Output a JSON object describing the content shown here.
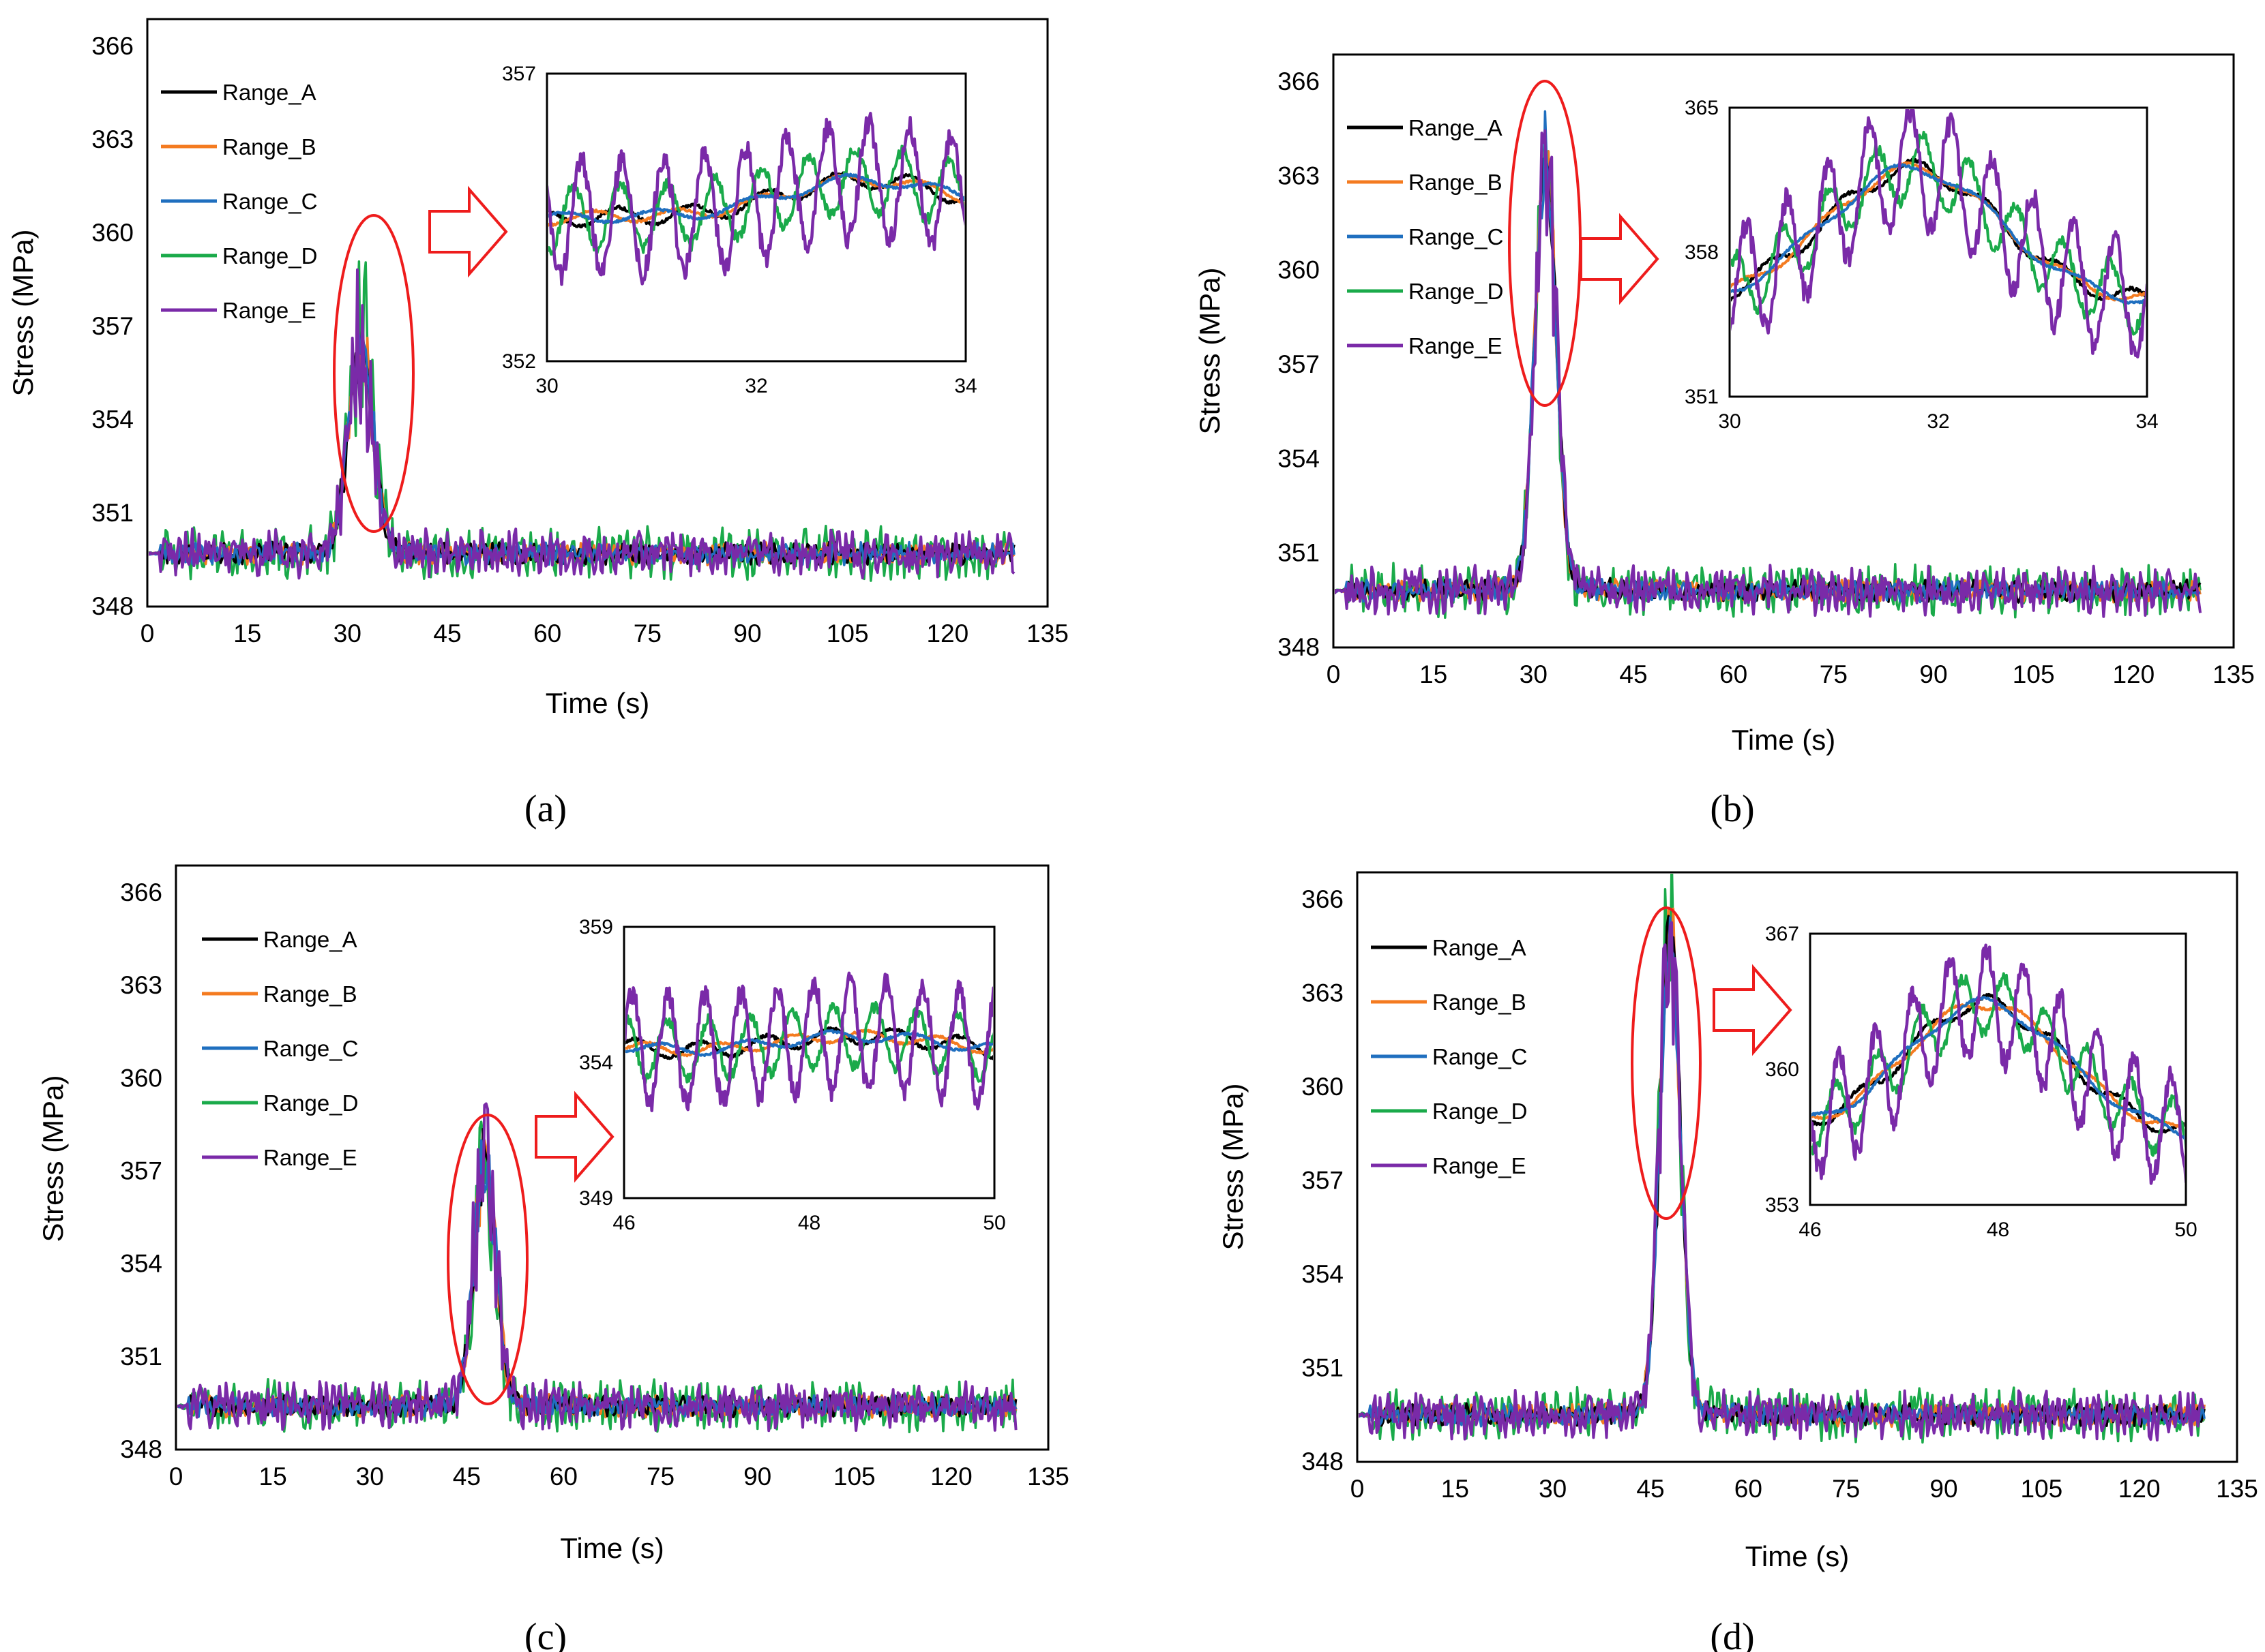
{
  "figure": {
    "colors": {
      "Range_A": "#000000",
      "Range_B": "#f47b20",
      "Range_C": "#1f6fbf",
      "Range_D": "#1aaa4a",
      "Range_E": "#7a2aa8",
      "highlight": "#ee1c1c"
    }
  },
  "chart_data": [
    {
      "type": "line",
      "panel_label": "(a)",
      "xlabel": "Time (s)",
      "ylabel": "Stress (MPa)",
      "xlim": [
        0,
        135
      ],
      "ylim": [
        348,
        366
      ],
      "xticks": [
        "0",
        "15",
        "30",
        "45",
        "60",
        "75",
        "90",
        "105",
        "120",
        "135"
      ],
      "yticks": [
        "348",
        "351",
        "354",
        "357",
        "360",
        "363",
        "366"
      ],
      "legend": [
        "Range_A",
        "Range_B",
        "Range_C",
        "Range_D",
        "Range_E"
      ],
      "legend_position": "top-left",
      "series_profile": {
        "base": 349.7,
        "peak_time": 32,
        "peak_value": 356.2,
        "peak_width": 2.6,
        "end_time": 130
      },
      "inset": {
        "xlim": [
          30,
          34
        ],
        "ylim": [
          352,
          357
        ],
        "xticks": [
          "30",
          "32",
          "34"
        ],
        "yticks": [
          "352",
          "357"
        ],
        "profile": {
          "center": 354.4,
          "envelope_peak": 32.9,
          "envelope_gain": 0.8
        }
      }
    },
    {
      "type": "line",
      "panel_label": "(b)",
      "xlabel": "Time (s)",
      "ylabel": "Stress (MPa)",
      "xlim": [
        0,
        135
      ],
      "ylim": [
        348,
        366
      ],
      "xticks": [
        "0",
        "15",
        "30",
        "45",
        "60",
        "75",
        "90",
        "105",
        "120",
        "135"
      ],
      "yticks": [
        "348",
        "351",
        "354",
        "357",
        "360",
        "363",
        "366"
      ],
      "legend": [
        "Range_A",
        "Range_B",
        "Range_C",
        "Range_D",
        "Range_E"
      ],
      "legend_position": "top-left",
      "series_profile": {
        "base": 349.8,
        "peak_time": 31.8,
        "peak_value": 363.5,
        "peak_width": 2.2,
        "end_time": 130
      },
      "inset": {
        "xlim": [
          30,
          34
        ],
        "ylim": [
          351,
          365
        ],
        "xticks": [
          "30",
          "32",
          "34"
        ],
        "yticks": [
          "351",
          "358",
          "365"
        ],
        "profile": {
          "center": 355.2,
          "envelope_peak": 31.8,
          "envelope_gain": 7.0
        }
      }
    },
    {
      "type": "line",
      "panel_label": "(c)",
      "xlabel": "Time (s)",
      "ylabel": "Stress (MPa)",
      "xlim": [
        0,
        135
      ],
      "ylim": [
        348,
        366
      ],
      "xticks": [
        "0",
        "15",
        "30",
        "45",
        "60",
        "75",
        "90",
        "105",
        "120",
        "135"
      ],
      "yticks": [
        "348",
        "351",
        "354",
        "357",
        "360",
        "363",
        "366"
      ],
      "legend": [
        "Range_A",
        "Range_B",
        "Range_C",
        "Range_D",
        "Range_E"
      ],
      "legend_position": "top-left",
      "series_profile": {
        "base": 349.4,
        "peak_time": 47.8,
        "peak_value": 357.2,
        "peak_width": 2.4,
        "end_time": 130
      },
      "inset": {
        "xlim": [
          46,
          50
        ],
        "ylim": [
          349,
          359
        ],
        "xticks": [
          "46",
          "48",
          "50"
        ],
        "yticks": [
          "349",
          "354",
          "359"
        ],
        "profile": {
          "center": 354.5,
          "envelope_peak": 48.0,
          "envelope_gain": 0.4
        }
      }
    },
    {
      "type": "line",
      "panel_label": "(d)",
      "xlabel": "Time (s)",
      "ylabel": "Stress (MPa)",
      "xlim": [
        0,
        135
      ],
      "ylim": [
        348,
        366
      ],
      "xticks": [
        "0",
        "15",
        "30",
        "45",
        "60",
        "75",
        "90",
        "105",
        "120",
        "135"
      ],
      "yticks": [
        "348",
        "351",
        "354",
        "357",
        "360",
        "363",
        "366"
      ],
      "legend": [
        "Range_A",
        "Range_B",
        "Range_C",
        "Range_D",
        "Range_E"
      ],
      "legend_position": "top-left",
      "series_profile": {
        "base": 349.5,
        "peak_time": 48.0,
        "peak_value": 364.8,
        "peak_width": 2.2,
        "end_time": 130
      },
      "inset": {
        "xlim": [
          46,
          50
        ],
        "ylim": [
          353,
          367
        ],
        "xticks": [
          "46",
          "48",
          "50"
        ],
        "yticks": [
          "353",
          "360",
          "367"
        ],
        "profile": {
          "center": 356.5,
          "envelope_peak": 47.8,
          "envelope_gain": 7.0
        }
      }
    }
  ]
}
